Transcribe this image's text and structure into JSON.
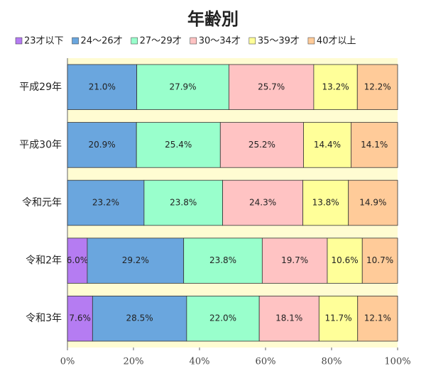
{
  "chart_data": {
    "type": "stacked-barh",
    "title": "年齢別",
    "categories": [
      "平成29年",
      "平成30年",
      "令和元年",
      "令和2年",
      "令和3年"
    ],
    "series": [
      {
        "name": "23才以下",
        "color": "#b57cf2",
        "values": [
          0,
          0,
          0,
          6.0,
          7.6
        ],
        "value_labels": [
          null,
          null,
          null,
          "6.0%",
          "7.6%"
        ]
      },
      {
        "name": "24～26才",
        "color": "#6aa6de",
        "values": [
          21.0,
          20.9,
          23.2,
          29.2,
          28.5
        ],
        "value_labels": [
          "21.0%",
          "20.9%",
          "23.2%",
          "29.2%",
          "28.5%"
        ]
      },
      {
        "name": "27～29才",
        "color": "#99ffcc",
        "values": [
          27.9,
          25.4,
          23.8,
          23.8,
          22.0
        ],
        "value_labels": [
          "27.9%",
          "25.4%",
          "23.8%",
          "23.8%",
          "22.0%"
        ]
      },
      {
        "name": "30～34才",
        "color": "#ffc3c3",
        "values": [
          25.7,
          25.2,
          24.3,
          19.7,
          18.1
        ],
        "value_labels": [
          "25.7%",
          "25.2%",
          "24.3%",
          "19.7%",
          "18.1%"
        ]
      },
      {
        "name": "35～39才",
        "color": "#ffff99",
        "values": [
          13.2,
          14.4,
          13.8,
          10.6,
          11.7
        ],
        "value_labels": [
          "13.2%",
          "14.4%",
          "13.8%",
          "10.6%",
          "11.7%"
        ]
      },
      {
        "name": "40才以上",
        "color": "#ffcb99",
        "values": [
          12.2,
          14.1,
          14.9,
          10.7,
          12.1
        ],
        "value_labels": [
          "12.2%",
          "14.1%",
          "14.9%",
          "10.7%",
          "12.1%"
        ]
      }
    ],
    "xlim": [
      0,
      100
    ],
    "xticks": [
      {
        "value": 0,
        "label": "0%"
      },
      {
        "value": 20,
        "label": "20%"
      },
      {
        "value": 40,
        "label": "40%"
      },
      {
        "value": 60,
        "label": "60%"
      },
      {
        "value": 80,
        "label": "80%"
      },
      {
        "value": 100,
        "label": "100%"
      }
    ],
    "plot_background": "#fffcd2"
  }
}
